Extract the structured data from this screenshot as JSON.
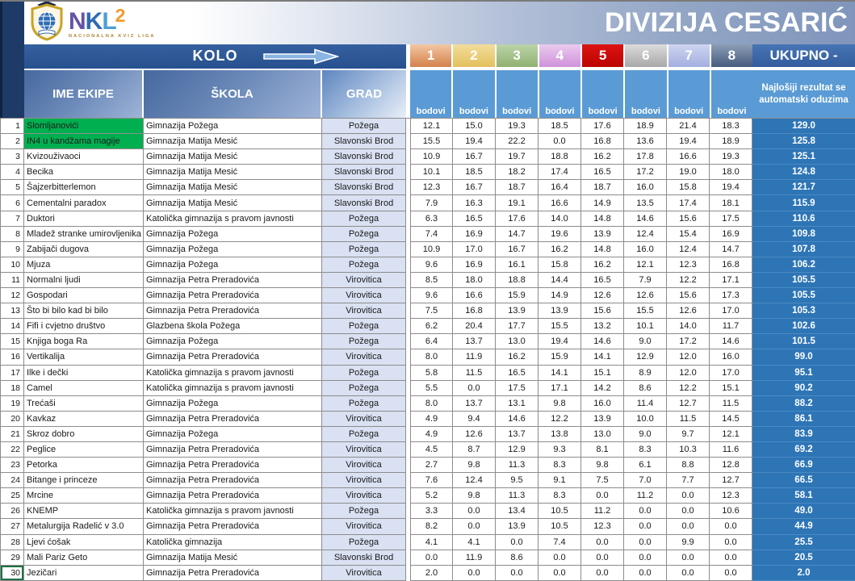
{
  "logo": {
    "brand_letters": [
      "N",
      "K",
      "L"
    ],
    "superscript": "2",
    "caption": "NACIONALNA KVIZ LIGA",
    "emblem": "shield-globe-graduation-cap-icon"
  },
  "header": {
    "title": "DIVIZIJA CESARIĆ",
    "kolo_label": "KOLO",
    "kolo_arrow_icon": "right-arrow-icon",
    "rounds": [
      "1",
      "2",
      "3",
      "4",
      "5",
      "6",
      "7",
      "8"
    ],
    "bodovi_label": "bodovi",
    "ukupno_label": "UKUPNO -",
    "ukupno_note": "Najlošiji rezultat se automatski oduzima"
  },
  "columns": {
    "team": "IME EKIPE",
    "school": "ŠKOLA",
    "city": "GRAD"
  },
  "colors": {
    "navy_block": "#1e3a66",
    "kolo_band": "#2d5795",
    "header_blue_gradient": "#45689e",
    "grad_header": "#a9c0e0",
    "bodovi_blue": "#5b9bd5",
    "total_blue": "#2e75b6",
    "city_fill": "#d9e1f2",
    "highlight_green": "#00b050",
    "round_header_colors": [
      "#e09c6c",
      "#e3c05e",
      "#90b171",
      "#d092da",
      "#c50804",
      "#bfbfbf",
      "#aab4e2",
      "#5a6d8d"
    ]
  },
  "table": {
    "rows": [
      {
        "rank": "1",
        "team": "Slomljanovići",
        "school": "Gimnazija Požega",
        "city": "Požega",
        "scores": [
          "12.1",
          "15.0",
          "19.3",
          "18.5",
          "17.6",
          "18.9",
          "21.4",
          "18.3"
        ],
        "total": "129.0",
        "highlight": true
      },
      {
        "rank": "2",
        "team": "IN4 u kandžama magije",
        "school": "Gimnazija Matija Mesić",
        "city": "Slavonski Brod",
        "scores": [
          "15.5",
          "19.4",
          "22.2",
          "0.0",
          "16.8",
          "13.6",
          "19.4",
          "18.9"
        ],
        "total": "125.8",
        "highlight": true
      },
      {
        "rank": "3",
        "team": "Kvizouživaoci",
        "school": "Gimnazija Matija Mesić",
        "city": "Slavonski Brod",
        "scores": [
          "10.9",
          "16.7",
          "19.7",
          "18.8",
          "16.2",
          "17.8",
          "16.6",
          "19.3"
        ],
        "total": "125.1"
      },
      {
        "rank": "4",
        "team": "Becika",
        "school": "Gimnazija Matija Mesić",
        "city": "Slavonski Brod",
        "scores": [
          "10.1",
          "18.5",
          "18.2",
          "17.4",
          "16.5",
          "17.2",
          "19.0",
          "18.0"
        ],
        "total": "124.8"
      },
      {
        "rank": "5",
        "team": "Šajzerbitterlemon",
        "school": "Gimnazija Matija Mesić",
        "city": "Slavonski Brod",
        "scores": [
          "12.3",
          "16.7",
          "18.7",
          "16.4",
          "18.7",
          "16.0",
          "15.8",
          "19.4"
        ],
        "total": "121.7"
      },
      {
        "rank": "6",
        "team": "Cementalni paradox",
        "school": "Gimnazija Matija Mesić",
        "city": "Slavonski Brod",
        "scores": [
          "7.9",
          "16.3",
          "19.1",
          "16.6",
          "14.9",
          "13.5",
          "17.4",
          "18.1"
        ],
        "total": "115.9"
      },
      {
        "rank": "7",
        "team": "Duktori",
        "school": "Katolička gimnazija s pravom javnosti",
        "city": "Požega",
        "scores": [
          "6.3",
          "16.5",
          "17.6",
          "14.0",
          "14.8",
          "14.6",
          "15.6",
          "17.5"
        ],
        "total": "110.6"
      },
      {
        "rank": "8",
        "team": "Mladež stranke umirovljenika",
        "school": "Gimnazija Požega",
        "city": "Požega",
        "scores": [
          "7.4",
          "16.9",
          "14.7",
          "19.6",
          "13.9",
          "12.4",
          "15.4",
          "16.9"
        ],
        "total": "109.8"
      },
      {
        "rank": "9",
        "team": "Zabijači dugova",
        "school": "Gimnazija Požega",
        "city": "Požega",
        "scores": [
          "10.9",
          "17.0",
          "16.7",
          "16.2",
          "14.8",
          "16.0",
          "12.4",
          "14.7"
        ],
        "total": "107.8"
      },
      {
        "rank": "10",
        "team": "Mjuza",
        "school": "Gimnazija Požega",
        "city": "Požega",
        "scores": [
          "9.6",
          "16.9",
          "16.1",
          "15.8",
          "16.2",
          "12.1",
          "12.3",
          "16.8"
        ],
        "total": "106.2"
      },
      {
        "rank": "11",
        "team": "Normalni ljudi",
        "school": "Gimnazija Petra Preradovića",
        "city": "Virovitica",
        "scores": [
          "8.5",
          "18.0",
          "18.8",
          "14.4",
          "16.5",
          "7.9",
          "12.2",
          "17.1"
        ],
        "total": "105.5"
      },
      {
        "rank": "12",
        "team": "Gospodari",
        "school": "Gimnazija Petra Preradovića",
        "city": "Virovitica",
        "scores": [
          "9.6",
          "16.6",
          "15.9",
          "14.9",
          "12.6",
          "12.6",
          "15.6",
          "17.3"
        ],
        "total": "105.5"
      },
      {
        "rank": "13",
        "team": "Što bi bilo kad bi bilo",
        "school": "Gimnazija Petra Preradovića",
        "city": "Virovitica",
        "scores": [
          "7.5",
          "16.8",
          "13.9",
          "13.9",
          "15.6",
          "15.5",
          "12.6",
          "17.0"
        ],
        "total": "105.3"
      },
      {
        "rank": "14",
        "team": "Fifi i cvjetno društvo",
        "school": "Glazbena škola Požega",
        "city": "Požega",
        "scores": [
          "6.2",
          "20.4",
          "17.7",
          "15.5",
          "13.2",
          "10.1",
          "14.0",
          "11.7"
        ],
        "total": "102.6"
      },
      {
        "rank": "15",
        "team": "Knjiga boga Ra",
        "school": "Gimnazija Požega",
        "city": "Požega",
        "scores": [
          "6.4",
          "13.7",
          "13.0",
          "19.4",
          "14.6",
          "9.0",
          "17.2",
          "14.6"
        ],
        "total": "101.5"
      },
      {
        "rank": "16",
        "team": "Vertikalija",
        "school": "Gimnazija Petra Preradovića",
        "city": "Virovitica",
        "scores": [
          "8.0",
          "11.9",
          "16.2",
          "15.9",
          "14.1",
          "12.9",
          "12.0",
          "16.0"
        ],
        "total": "99.0"
      },
      {
        "rank": "17",
        "team": "Ilke i dečki",
        "school": "Katolička gimnazija s pravom javnosti",
        "city": "Požega",
        "scores": [
          "5.8",
          "11.5",
          "16.5",
          "14.1",
          "15.1",
          "8.9",
          "12.0",
          "17.0"
        ],
        "total": "95.1"
      },
      {
        "rank": "18",
        "team": "Camel",
        "school": "Katolička gimnazija s pravom javnosti",
        "city": "Požega",
        "scores": [
          "5.5",
          "0.0",
          "17.5",
          "17.1",
          "14.2",
          "8.6",
          "12.2",
          "15.1"
        ],
        "total": "90.2"
      },
      {
        "rank": "19",
        "team": "Trećaši",
        "school": "Gimnazija Požega",
        "city": "Požega",
        "scores": [
          "8.0",
          "13.7",
          "13.1",
          "9.8",
          "16.0",
          "11.4",
          "12.7",
          "11.5"
        ],
        "total": "88.2"
      },
      {
        "rank": "20",
        "team": "Kavkaz",
        "school": "Gimnazija Petra Preradovića",
        "city": "Virovitica",
        "scores": [
          "4.9",
          "9.4",
          "14.6",
          "12.2",
          "13.9",
          "10.0",
          "11.5",
          "14.5"
        ],
        "total": "86.1"
      },
      {
        "rank": "21",
        "team": "Skroz dobro",
        "school": "Gimnazija Požega",
        "city": "Požega",
        "scores": [
          "4.9",
          "12.6",
          "13.7",
          "13.8",
          "13.0",
          "9.0",
          "9.7",
          "12.1"
        ],
        "total": "83.9"
      },
      {
        "rank": "22",
        "team": "Peglice",
        "school": "Gimnazija Petra Preradovića",
        "city": "Virovitica",
        "scores": [
          "4.5",
          "8.7",
          "12.9",
          "9.3",
          "8.1",
          "8.3",
          "10.3",
          "11.6"
        ],
        "total": "69.2"
      },
      {
        "rank": "23",
        "team": "Petorka",
        "school": "Gimnazija Petra Preradovića",
        "city": "Virovitica",
        "scores": [
          "2.7",
          "9.8",
          "11.3",
          "8.3",
          "9.8",
          "6.1",
          "8.8",
          "12.8"
        ],
        "total": "66.9"
      },
      {
        "rank": "24",
        "team": "Bitange i princeze",
        "school": "Gimnazija Petra Preradovića",
        "city": "Virovitica",
        "scores": [
          "7.6",
          "12.4",
          "9.5",
          "9.1",
          "7.5",
          "7.0",
          "7.7",
          "12.7"
        ],
        "total": "66.5"
      },
      {
        "rank": "25",
        "team": "Mrcine",
        "school": "Gimnazija Petra Preradovića",
        "city": "Virovitica",
        "scores": [
          "5.2",
          "9.8",
          "11.3",
          "8.3",
          "0.0",
          "11.2",
          "0.0",
          "12.3"
        ],
        "total": "58.1"
      },
      {
        "rank": "26",
        "team": "KNEMP",
        "school": "Katolička gimnazija s pravom javnosti",
        "city": "Požega",
        "scores": [
          "3.3",
          "0.0",
          "13.4",
          "10.5",
          "11.2",
          "0.0",
          "0.0",
          "10.6"
        ],
        "total": "49.0"
      },
      {
        "rank": "27",
        "team": "Metalurgija Radelić v 3.0",
        "school": "Gimnazija Petra Preradovića",
        "city": "Virovitica",
        "scores": [
          "8.2",
          "0.0",
          "13.9",
          "10.5",
          "12.3",
          "0.0",
          "0.0",
          "0.0"
        ],
        "total": "44.9"
      },
      {
        "rank": "28",
        "team": "Ljevi ćošak",
        "school": "Katolička gimnazija",
        "city": "Požega",
        "scores": [
          "4.1",
          "4.1",
          "0.0",
          "7.4",
          "0.0",
          "0.0",
          "9.9",
          "0.0"
        ],
        "total": "25.5"
      },
      {
        "rank": "29",
        "team": "Mali Pariz Geto",
        "school": "Gimnazija Matija Mesić",
        "city": "Slavonski Brod",
        "scores": [
          "0.0",
          "11.9",
          "8.6",
          "0.0",
          "0.0",
          "0.0",
          "0.0",
          "0.0"
        ],
        "total": "20.5"
      },
      {
        "rank": "30",
        "team": "Jezičari",
        "school": "Gimnazija Petra Preradovića",
        "city": "Virovitica",
        "scores": [
          "2.0",
          "0.0",
          "0.0",
          "0.0",
          "0.0",
          "0.0",
          "0.0",
          "0.0"
        ],
        "total": "2.0",
        "selected": true
      }
    ]
  }
}
